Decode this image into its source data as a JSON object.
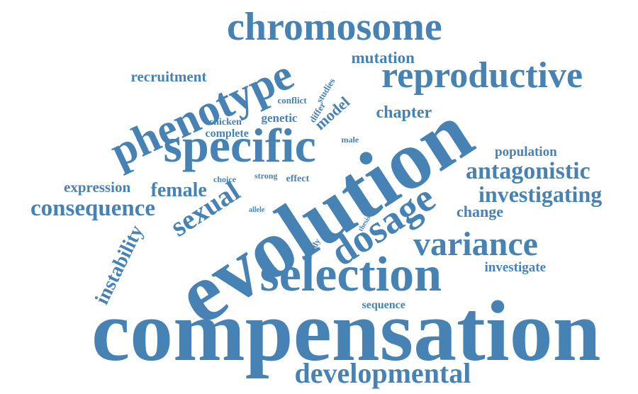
{
  "color": "#4682b4",
  "background": "#ffffff",
  "words": [
    {
      "text": "compensation",
      "weight": 1.0
    },
    {
      "text": "evolution",
      "weight": 0.95
    },
    {
      "text": "selection",
      "weight": 0.62
    },
    {
      "text": "specific",
      "weight": 0.58
    },
    {
      "text": "phenotype",
      "weight": 0.58
    },
    {
      "text": "chromosome",
      "weight": 0.52
    },
    {
      "text": "reproductive",
      "weight": 0.5
    },
    {
      "text": "dosage",
      "weight": 0.5
    },
    {
      "text": "variance",
      "weight": 0.42
    },
    {
      "text": "developmental",
      "weight": 0.37
    },
    {
      "text": "sexual",
      "weight": 0.37
    },
    {
      "text": "consequence",
      "weight": 0.3
    },
    {
      "text": "antagonistic",
      "weight": 0.3
    },
    {
      "text": "investigating",
      "weight": 0.3
    },
    {
      "text": "female",
      "weight": 0.26
    },
    {
      "text": "instability",
      "weight": 0.24
    },
    {
      "text": "chapter",
      "weight": 0.23
    },
    {
      "text": "mutation",
      "weight": 0.2
    },
    {
      "text": "model",
      "weight": 0.2
    },
    {
      "text": "change",
      "weight": 0.2
    },
    {
      "text": "recruitment",
      "weight": 0.18
    },
    {
      "text": "expression",
      "weight": 0.18
    },
    {
      "text": "population",
      "weight": 0.17
    },
    {
      "text": "investigate",
      "weight": 0.17
    },
    {
      "text": "genetic",
      "weight": 0.16
    },
    {
      "text": "complete",
      "weight": 0.14
    },
    {
      "text": "sequence",
      "weight": 0.14
    },
    {
      "text": "chicken",
      "weight": 0.12
    },
    {
      "text": "effect",
      "weight": 0.12
    },
    {
      "text": "conflict",
      "weight": 0.11
    },
    {
      "text": "studies",
      "weight": 0.11
    },
    {
      "text": "differ",
      "weight": 0.11
    },
    {
      "text": "male",
      "weight": 0.1
    },
    {
      "text": "choice",
      "weight": 0.1
    },
    {
      "text": "strong",
      "weight": 0.1
    },
    {
      "text": "study",
      "weight": 0.09
    },
    {
      "text": "thesis",
      "weight": 0.08
    },
    {
      "text": "allele",
      "weight": 0.08
    }
  ]
}
